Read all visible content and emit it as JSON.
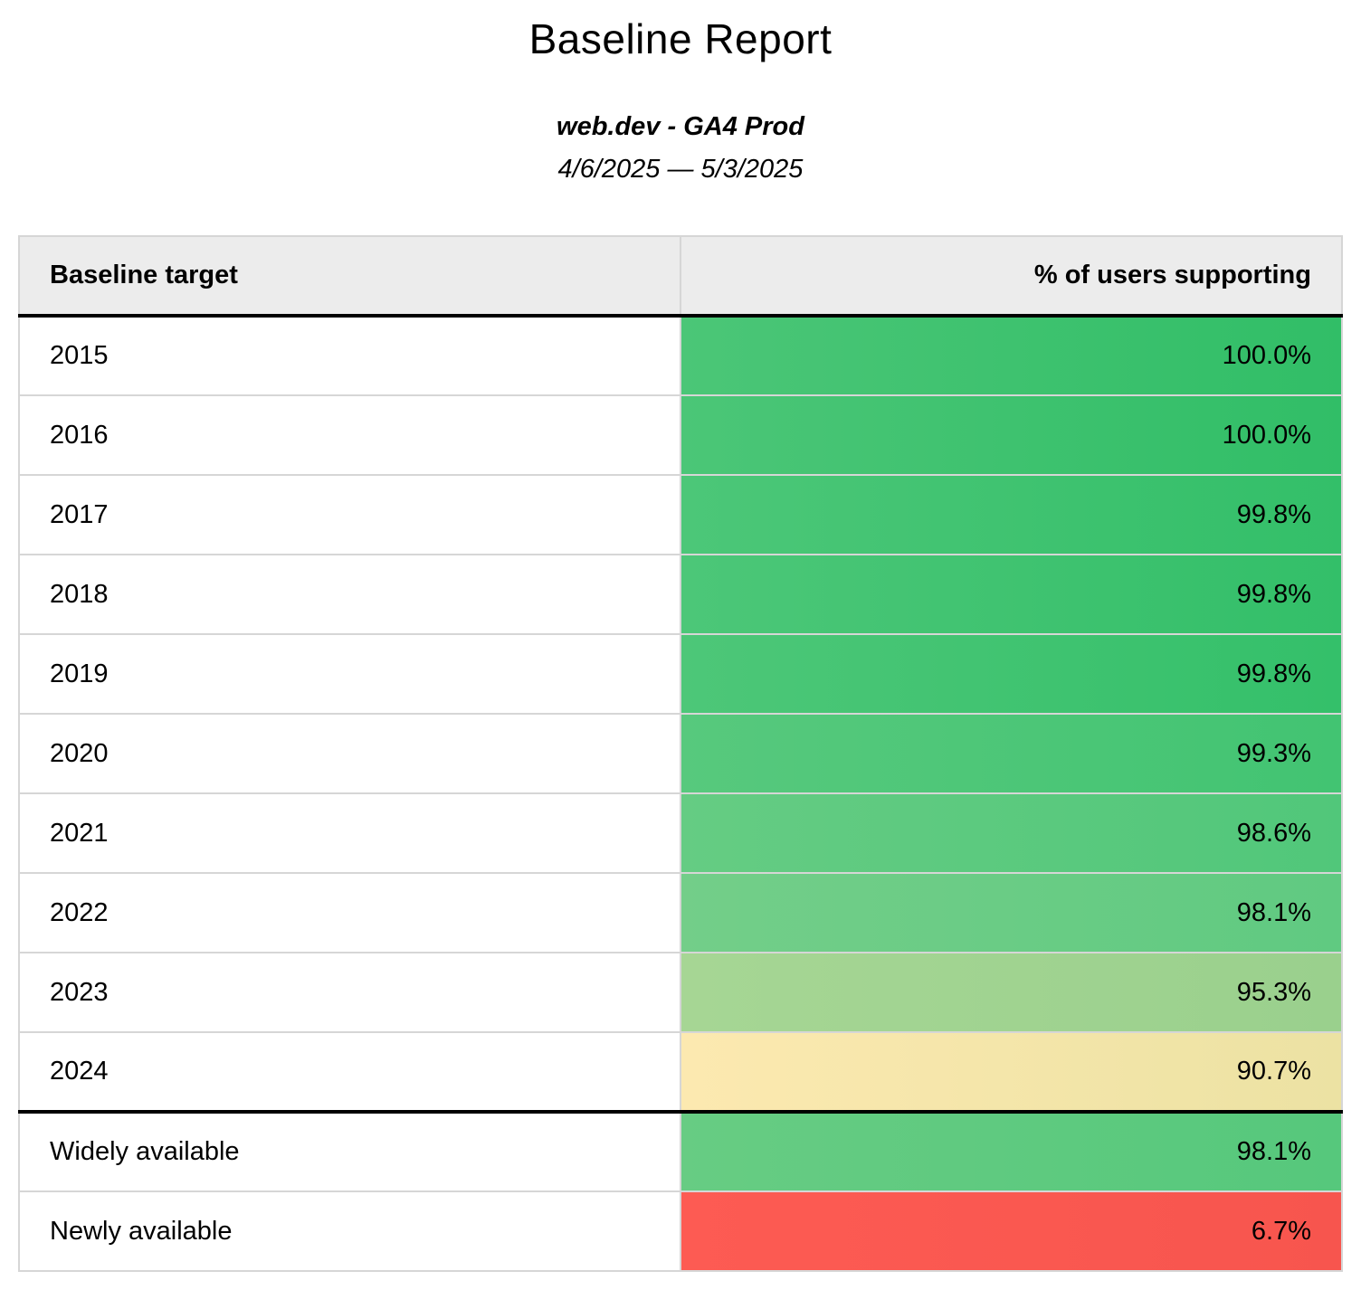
{
  "report": {
    "title": "Baseline Report",
    "subtitle": "web.dev - GA4 Prod",
    "date_range": "4/6/2025 — 5/3/2025"
  },
  "table": {
    "columns": {
      "target": "Baseline target",
      "percent": "% of users supporting"
    },
    "rows": [
      {
        "label": "2015",
        "value": "100.0%",
        "bg_left": "#4bc677",
        "bg_right": "#31be67"
      },
      {
        "label": "2016",
        "value": "100.0%",
        "bg_left": "#4bc677",
        "bg_right": "#31be67"
      },
      {
        "label": "2017",
        "value": "99.8%",
        "bg_left": "#4cc778",
        "bg_right": "#33bf69"
      },
      {
        "label": "2018",
        "value": "99.8%",
        "bg_left": "#4cc778",
        "bg_right": "#33bf69"
      },
      {
        "label": "2019",
        "value": "99.8%",
        "bg_left": "#4dc778",
        "bg_right": "#34c06a"
      },
      {
        "label": "2020",
        "value": "99.3%",
        "bg_left": "#57c97d",
        "bg_right": "#42c472"
      },
      {
        "label": "2021",
        "value": "98.6%",
        "bg_left": "#65cc83",
        "bg_right": "#51c77a"
      },
      {
        "label": "2022",
        "value": "98.1%",
        "bg_left": "#73ce89",
        "bg_right": "#60ca81"
      },
      {
        "label": "2023",
        "value": "95.3%",
        "bg_left": "#a6d694",
        "bg_right": "#9ad08d"
      },
      {
        "label": "2024",
        "value": "90.7%",
        "bg_left": "#fce9b0",
        "bg_right": "#ece2a3"
      },
      {
        "label": "Widely available",
        "value": "98.1%",
        "bg_left": "#67cc83",
        "bg_right": "#56c87c"
      },
      {
        "label": "Newly available",
        "value": "6.7%",
        "bg_left": "#fd5b53",
        "bg_right": "#f7554e"
      }
    ]
  },
  "colors": {
    "header_background": "#ececec",
    "grid_border": "#d6d6d6",
    "section_border": "#000000",
    "text": "#000000"
  },
  "chart_data": {
    "type": "table",
    "title": "Baseline Report",
    "subtitle": "web.dev - GA4 Prod",
    "date_range": "4/6/2025 — 5/3/2025",
    "columns": [
      "Baseline target",
      "% of users supporting"
    ],
    "categories": [
      "2015",
      "2016",
      "2017",
      "2018",
      "2019",
      "2020",
      "2021",
      "2022",
      "2023",
      "2024",
      "Widely available",
      "Newly available"
    ],
    "values": [
      100.0,
      100.0,
      99.8,
      99.8,
      99.8,
      99.3,
      98.6,
      98.1,
      95.3,
      90.7,
      98.1,
      6.7
    ]
  }
}
